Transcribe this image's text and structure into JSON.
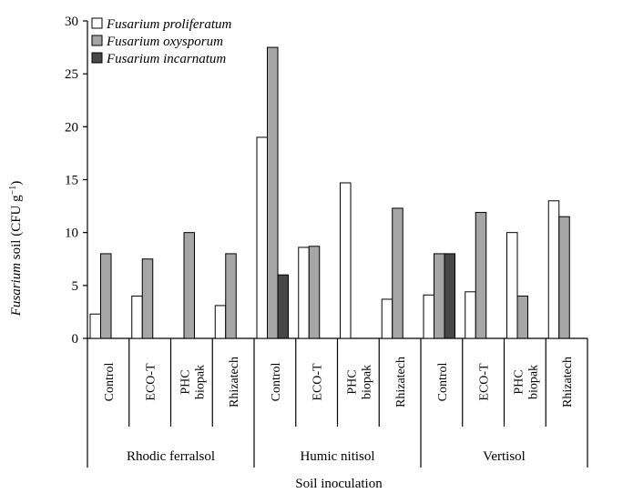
{
  "chart_data": {
    "type": "bar",
    "ylabel": "Fusarium soil (CFU g⁻¹)",
    "ylabel_italic": "Fusarium",
    "ylabel_rest": " soil (CFU g",
    "ylabel_sup": "−1",
    "ylabel_close": ")",
    "xlabel": "Soil inoculation",
    "ylim": [
      0,
      30
    ],
    "yticks": [
      0,
      5,
      10,
      15,
      20,
      25,
      30
    ],
    "grid": false,
    "legend_position": "top-left",
    "groups": [
      {
        "name": "Rhodic ferralsol",
        "categories": [
          "Control",
          "ECO-T",
          "PHC biopak",
          "Rhizatech"
        ]
      },
      {
        "name": "Humic nitisol",
        "categories": [
          "Control",
          "ECO-T",
          "PHC biopak",
          "Rhizatech"
        ]
      },
      {
        "name": "Vertisol",
        "categories": [
          "Control",
          "ECO-T",
          "PHC biopak",
          "Rhizatech"
        ]
      }
    ],
    "category_label_lines": {
      "Control": [
        "Control"
      ],
      "ECO-T": [
        "ECO-T"
      ],
      "PHC biopak": [
        "PHC",
        "biopak"
      ],
      "Rhizatech": [
        "Rhizatech"
      ]
    },
    "series": [
      {
        "name": "Fusarium proliferatum",
        "color": "#ffffff",
        "values": [
          2.3,
          4.0,
          0,
          3.1,
          19.0,
          8.6,
          14.7,
          3.7,
          4.1,
          4.4,
          10.0,
          13.0
        ]
      },
      {
        "name": "Fusarium oxysporum",
        "color": "#a6a6a6",
        "values": [
          8.0,
          7.5,
          10.0,
          8.0,
          27.5,
          8.7,
          0,
          12.3,
          8.0,
          11.9,
          4.0,
          11.5
        ]
      },
      {
        "name": "Fusarium incarnatum",
        "color": "#474747",
        "values": [
          0,
          0,
          0,
          0,
          6.0,
          0,
          0,
          0,
          8.0,
          0,
          0,
          0
        ]
      }
    ]
  }
}
